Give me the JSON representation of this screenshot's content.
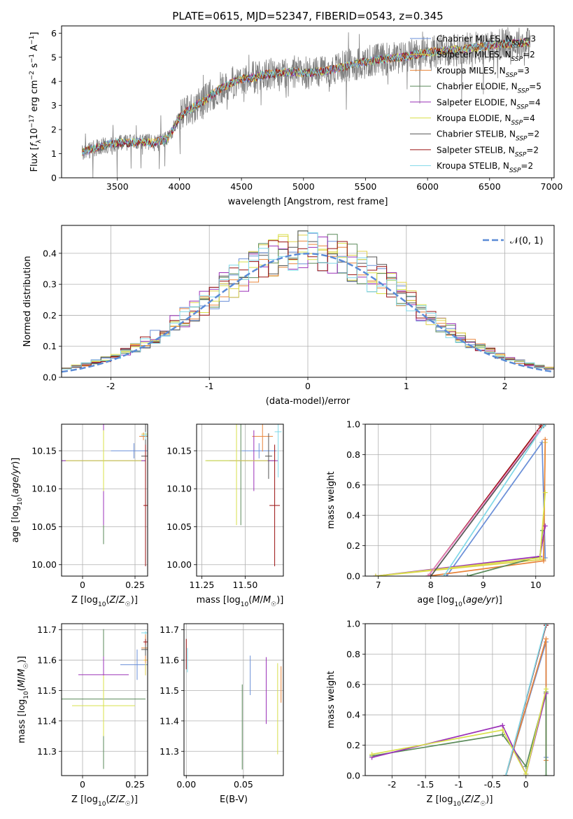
{
  "figure_title": "PLATE=0615, MJD=52347, FIBERID=0543, z=0.345",
  "colors": {
    "Chabrier MILES": "#6a8fd8",
    "Salpeter MILES": "#e0d24a",
    "Kroupa MILES": "#e8843a",
    "Chabrier ELODIE": "#5a8a5a",
    "Salpeter ELODIE": "#9b30b8",
    "Kroupa ELODIE": "#d8e04a",
    "Chabrier STELIB": "#555555",
    "Salpeter STELIB": "#9a1010",
    "Kroupa STELIB": "#80d8e8",
    "data": "#808080",
    "normal": "#5b8bd6",
    "pink": "#e88ac8"
  },
  "chart_data": [
    {
      "id": "spectrum",
      "type": "line",
      "title": "PLATE=0615, MJD=52347, FIBERID=0543, z=0.345",
      "xlabel": "wavelength [Angstrom, rest frame]",
      "ylabel": "Flux [f_λ 10^-17 erg cm^-2 s^-1 A^-1]",
      "xlim": [
        3050,
        7020
      ],
      "ylim": [
        0,
        6.3
      ],
      "xticks": [
        3500,
        4000,
        4500,
        5000,
        5500,
        6000,
        6500,
        7000
      ],
      "yticks": [
        0,
        1,
        2,
        3,
        4,
        5,
        6
      ],
      "grid": false,
      "legend_position": "top-right",
      "legend": [
        {
          "name": "Chabrier MILES, N",
          "sub": "SSP",
          "tail": "=3"
        },
        {
          "name": "Salpeter MILES, N",
          "sub": "SSP",
          "tail": "=2"
        },
        {
          "name": "Kroupa MILES, N",
          "sub": "SSP",
          "tail": "=3"
        },
        {
          "name": "Chabrier ELODIE, N",
          "sub": "SSP",
          "tail": "=5"
        },
        {
          "name": "Salpeter ELODIE, N",
          "sub": "SSP",
          "tail": "=4"
        },
        {
          "name": "Kroupa ELODIE, N",
          "sub": "SSP",
          "tail": "=4"
        },
        {
          "name": "Chabrier STELIB, N",
          "sub": "SSP",
          "tail": "=2"
        },
        {
          "name": "Salpeter STELIB, N",
          "sub": "SSP",
          "tail": "=2"
        },
        {
          "name": "Kroupa STELIB, N",
          "sub": "SSP",
          "tail": "=2"
        }
      ],
      "continuum": {
        "wavelength": [
          3215,
          3300,
          3400,
          3500,
          3600,
          3700,
          3800,
          3900,
          4000,
          4100,
          4200,
          4300,
          4400,
          4500,
          4600,
          4700,
          4800,
          4900,
          5000,
          5200,
          5400,
          5600,
          5800,
          6000,
          6200,
          6400,
          6600,
          6800
        ],
        "flux": [
          1.05,
          1.2,
          1.35,
          1.45,
          1.45,
          1.5,
          1.45,
          1.6,
          2.5,
          2.9,
          3.2,
          3.6,
          3.9,
          4.1,
          4.15,
          4.3,
          4.35,
          4.4,
          4.35,
          4.45,
          4.7,
          4.9,
          5.0,
          5.2,
          5.3,
          5.4,
          5.55,
          5.6
        ]
      }
    },
    {
      "id": "residuals",
      "type": "histogram",
      "xlabel": "(data-model)/error",
      "ylabel": "Normed distribution",
      "xlim": [
        -2.5,
        2.5
      ],
      "ylim": [
        0,
        0.49
      ],
      "xticks": [
        -2,
        -1,
        0,
        1,
        2
      ],
      "yticks": [
        0.0,
        0.1,
        0.2,
        0.3,
        0.4
      ],
      "grid": true,
      "legend_position": "top-right",
      "legend": "𝒩(0, 1)",
      "bin_width": 0.1,
      "normal_mean": 0,
      "normal_sigma": 1
    },
    {
      "id": "age_vs_Z",
      "type": "errorbar",
      "xlabel": "Z [log10(Z/Z☉)]",
      "ylabel": "age [log10(age/yr)]",
      "xlim": [
        -0.1,
        0.31
      ],
      "ylim": [
        9.985,
        10.185
      ],
      "xticks": [
        0.0,
        0.25
      ],
      "yticks": [
        10.0,
        10.05,
        10.1,
        10.15
      ],
      "grid": true,
      "points": [
        {
          "x": 0.245,
          "y": 10.15,
          "xerr": 0.11,
          "yerr": 0.01,
          "model": "Chabrier MILES"
        },
        {
          "x": 0.29,
          "y": 10.169,
          "xerr": 0.02,
          "yerr": 0.005,
          "model": "Kroupa MILES"
        },
        {
          "x": 0.3,
          "y": 10.172,
          "xerr": 0.02,
          "yerr": 0.01,
          "model": "Salpeter MILES"
        },
        {
          "x": 0.1,
          "y": 10.137,
          "xerr": 0.2,
          "yerr": 0.11,
          "model": "Chabrier ELODIE"
        },
        {
          "x": 0.1,
          "y": 10.137,
          "xerr": 0.2,
          "yerr": 0.085,
          "model": "Salpeter ELODIE"
        },
        {
          "x": 0.1,
          "y": 10.137,
          "xerr": 0.18,
          "yerr": 0.04,
          "model": "Kroupa ELODIE"
        },
        {
          "x": 0.3,
          "y": 10.143,
          "xerr": 0.02,
          "yerr": 0.055,
          "model": "Chabrier STELIB"
        },
        {
          "x": 0.3,
          "y": 10.078,
          "xerr": 0.01,
          "yerr": 0.08,
          "model": "Salpeter STELIB"
        },
        {
          "x": 0.3,
          "y": 10.17,
          "xerr": 0.02,
          "yerr": 0.005,
          "model": "Kroupa STELIB"
        }
      ]
    },
    {
      "id": "age_vs_mass",
      "type": "errorbar",
      "xlabel": "mass [log10(M/M☉)]",
      "ylabel": "",
      "xlim": [
        11.22,
        11.72
      ],
      "ylim": [
        9.985,
        10.185
      ],
      "xticks": [
        11.25,
        11.5
      ],
      "xtick_labels": [
        "11.25",
        "11.50"
      ],
      "yticks": [
        10.0,
        10.05,
        10.1,
        10.15
      ],
      "grid": true,
      "points": [
        {
          "x": 11.58,
          "y": 10.15,
          "xerr": 0.1,
          "yerr": 0.01,
          "model": "Chabrier MILES"
        },
        {
          "x": 11.6,
          "y": 10.169,
          "xerr": 0.06,
          "yerr": 0.02,
          "model": "Kroupa MILES"
        },
        {
          "x": 11.475,
          "y": 10.137,
          "xerr": 0.2,
          "yerr": 0.085,
          "model": "Chabrier ELODIE"
        },
        {
          "x": 11.55,
          "y": 10.137,
          "xerr": 0.14,
          "yerr": 0.04,
          "model": "Salpeter ELODIE"
        },
        {
          "x": 11.45,
          "y": 10.137,
          "xerr": 0.18,
          "yerr": 0.085,
          "model": "Kroupa ELODIE"
        },
        {
          "x": 11.635,
          "y": 10.143,
          "xerr": 0.02,
          "yerr": 0.03,
          "model": "Chabrier STELIB"
        },
        {
          "x": 11.67,
          "y": 10.078,
          "xerr": 0.03,
          "yerr": 0.08,
          "model": "Salpeter STELIB"
        },
        {
          "x": 11.69,
          "y": 10.175,
          "xerr": 0.02,
          "yerr": 0.06,
          "model": "Kroupa STELIB"
        }
      ]
    },
    {
      "id": "massweight_vs_age",
      "type": "line",
      "xlabel": "age [log10(age/yr)]",
      "ylabel": "mass weight",
      "xlim": [
        6.75,
        10.35
      ],
      "ylim": [
        0,
        1
      ],
      "xticks": [
        7,
        8,
        9,
        10
      ],
      "yticks": [
        0.0,
        0.2,
        0.4,
        0.6,
        0.8,
        1.0
      ],
      "grid": true,
      "series": [
        {
          "model": "Chabrier MILES",
          "x": [
            8.3,
            10.12,
            10.18
          ],
          "y": [
            0.0,
            0.88,
            0.12
          ]
        },
        {
          "model": "Salpeter MILES",
          "x": [
            6.95,
            10.15,
            10.18
          ],
          "y": [
            0.0,
            0.11,
            0.88
          ]
        },
        {
          "model": "Kroupa MILES",
          "x": [
            7.95,
            10.15,
            10.18
          ],
          "y": [
            0.0,
            0.1,
            0.9
          ]
        },
        {
          "model": "Chabrier ELODIE",
          "x": [
            8.7,
            10.08,
            10.13
          ],
          "y": [
            0.0,
            0.13,
            0.3
          ]
        },
        {
          "model": "Salpeter ELODIE",
          "x": [
            6.95,
            10.08,
            10.18
          ],
          "y": [
            0.0,
            0.13,
            0.33
          ]
        },
        {
          "model": "Kroupa ELODIE",
          "x": [
            6.95,
            10.08,
            10.18
          ],
          "y": [
            0.0,
            0.12,
            0.55
          ]
        },
        {
          "model": "Chabrier STELIB",
          "x": [
            8.0,
            10.15
          ],
          "y": [
            0.0,
            0.99
          ]
        },
        {
          "model": "Salpeter STELIB",
          "x": [
            7.95,
            10.1
          ],
          "y": [
            0.0,
            0.99
          ]
        },
        {
          "model": "Kroupa STELIB",
          "x": [
            8.25,
            10.17
          ],
          "y": [
            0.0,
            1.0
          ]
        },
        {
          "model": "pink",
          "x": [
            7.95,
            10.05
          ],
          "y": [
            0.0,
            0.95
          ]
        }
      ]
    },
    {
      "id": "mass_vs_Z",
      "type": "errorbar",
      "xlabel": "Z [log10(Z/Z☉)]",
      "ylabel": "mass [log10(M/M☉)]",
      "xlim": [
        -0.1,
        0.31
      ],
      "ylim": [
        11.22,
        11.72
      ],
      "xticks": [
        0.0,
        0.25
      ],
      "yticks": [
        11.3,
        11.4,
        11.5,
        11.6,
        11.7
      ],
      "grid": true,
      "points": [
        {
          "x": 0.26,
          "y": 11.585,
          "xerr": 0.08,
          "yerr": 0.05,
          "model": "Chabrier MILES"
        },
        {
          "x": 0.3,
          "y": 11.6,
          "xerr": 0.01,
          "yerr": 0.05,
          "model": "Salpeter MILES"
        },
        {
          "x": 0.3,
          "y": 11.64,
          "xerr": 0.02,
          "yerr": 0.05,
          "model": "Kroupa MILES"
        },
        {
          "x": 0.1,
          "y": 11.472,
          "xerr": 0.2,
          "yerr": 0.23,
          "model": "Chabrier ELODIE"
        },
        {
          "x": 0.1,
          "y": 11.552,
          "xerr": 0.12,
          "yerr": 0.06,
          "model": "Salpeter ELODIE"
        },
        {
          "x": 0.1,
          "y": 11.45,
          "xerr": 0.15,
          "yerr": 0.1,
          "model": "Kroupa ELODIE"
        },
        {
          "x": 0.3,
          "y": 11.635,
          "xerr": 0.02,
          "yerr": 0.02,
          "model": "Chabrier STELIB"
        },
        {
          "x": 0.3,
          "y": 11.66,
          "xerr": 0.01,
          "yerr": 0.01,
          "model": "Salpeter STELIB"
        },
        {
          "x": 0.3,
          "y": 11.69,
          "xerr": 0.02,
          "yerr": 0.005,
          "model": "Kroupa STELIB"
        }
      ]
    },
    {
      "id": "mass_vs_ebv",
      "type": "errorbar",
      "xlabel": "E(B-V)",
      "ylabel": "",
      "xlim": [
        -0.002,
        0.085
      ],
      "ylim": [
        11.22,
        11.72
      ],
      "xticks": [
        0.0,
        0.05
      ],
      "xtick_labels": [
        "0.00",
        "0.05"
      ],
      "yticks": [
        11.3,
        11.4,
        11.5,
        11.6,
        11.7
      ],
      "grid": true,
      "points": [
        {
          "x": 0.056,
          "y": 11.55,
          "xerr": 0,
          "yerr": 0.065,
          "model": "Chabrier MILES"
        },
        {
          "x": 0.083,
          "y": 11.52,
          "xerr": 0,
          "yerr": 0.06,
          "model": "Kroupa MILES"
        },
        {
          "x": 0.049,
          "y": 11.38,
          "xerr": 0,
          "yerr": 0.14,
          "model": "Chabrier ELODIE"
        },
        {
          "x": 0.07,
          "y": 11.5,
          "xerr": 0,
          "yerr": 0.11,
          "model": "Salpeter ELODIE"
        },
        {
          "x": 0.08,
          "y": 11.44,
          "xerr": 0,
          "yerr": 0.15,
          "model": "Kroupa ELODIE"
        },
        {
          "x": 0.0,
          "y": 11.62,
          "xerr": 0,
          "yerr": 0.05,
          "model": "Salpeter STELIB"
        },
        {
          "x": 0.001,
          "y": 11.6,
          "xerr": 0,
          "yerr": 0.04,
          "model": "Kroupa STELIB"
        }
      ]
    },
    {
      "id": "massweight_vs_Z",
      "type": "line",
      "xlabel": "Z [log10(Z/Z☉)]",
      "ylabel": "mass weight",
      "xlim": [
        -2.4,
        0.42
      ],
      "ylim": [
        0,
        1
      ],
      "xticks": [
        -2.0,
        -1.5,
        -1.0,
        -0.5,
        0.0
      ],
      "yticks": [
        0.0,
        0.2,
        0.4,
        0.6,
        0.8,
        1.0
      ],
      "grid": true,
      "series": [
        {
          "model": "Chabrier MILES",
          "x": [
            -0.3,
            0.3,
            0.3
          ],
          "y": [
            0.0,
            0.88,
            0.12
          ]
        },
        {
          "model": "Kroupa MILES",
          "x": [
            -0.3,
            0.3,
            0.3
          ],
          "y": [
            0.0,
            0.9,
            0.1
          ]
        },
        {
          "model": "Chabrier ELODIE",
          "x": [
            -2.3,
            -0.35,
            0.0,
            0.3,
            0.3
          ],
          "y": [
            0.13,
            0.27,
            0.06,
            0.55,
            0.0
          ]
        },
        {
          "model": "Salpeter ELODIE",
          "x": [
            -2.3,
            -0.35,
            0.0,
            0.3
          ],
          "y": [
            0.12,
            0.33,
            0.01,
            0.54
          ]
        },
        {
          "model": "Kroupa ELODIE",
          "x": [
            -2.3,
            -0.35,
            0.0,
            0.3
          ],
          "y": [
            0.14,
            0.3,
            0.01,
            0.57
          ]
        },
        {
          "model": "Chabrier STELIB",
          "x": [
            -0.3,
            0.3
          ],
          "y": [
            0.0,
            0.99
          ]
        },
        {
          "model": "Salpeter STELIB",
          "x": [
            -0.3,
            0.3
          ],
          "y": [
            0.0,
            0.99
          ]
        },
        {
          "model": "Kroupa STELIB",
          "x": [
            -0.3,
            0.3
          ],
          "y": [
            0.0,
            1.0
          ]
        }
      ]
    }
  ]
}
